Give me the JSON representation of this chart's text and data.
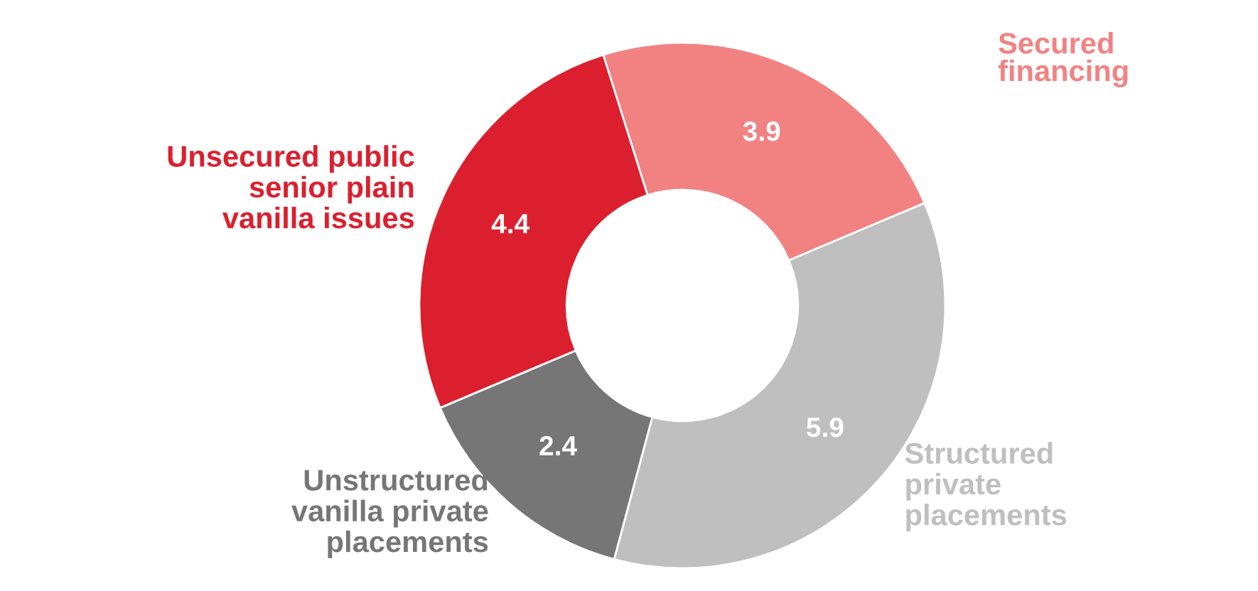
{
  "chart_data": {
    "type": "donut",
    "categories": [
      "Secured financing",
      "Structured private placements",
      "Unstructured vanilla private placements",
      "Unsecured public senior plain vanilla issues"
    ],
    "values": [
      3.9,
      5.9,
      2.4,
      4.4
    ],
    "colors": [
      "#f28282",
      "#bfbfbf",
      "#767676",
      "#dc1f2e"
    ],
    "data_labels": true,
    "legend": false
  }
}
